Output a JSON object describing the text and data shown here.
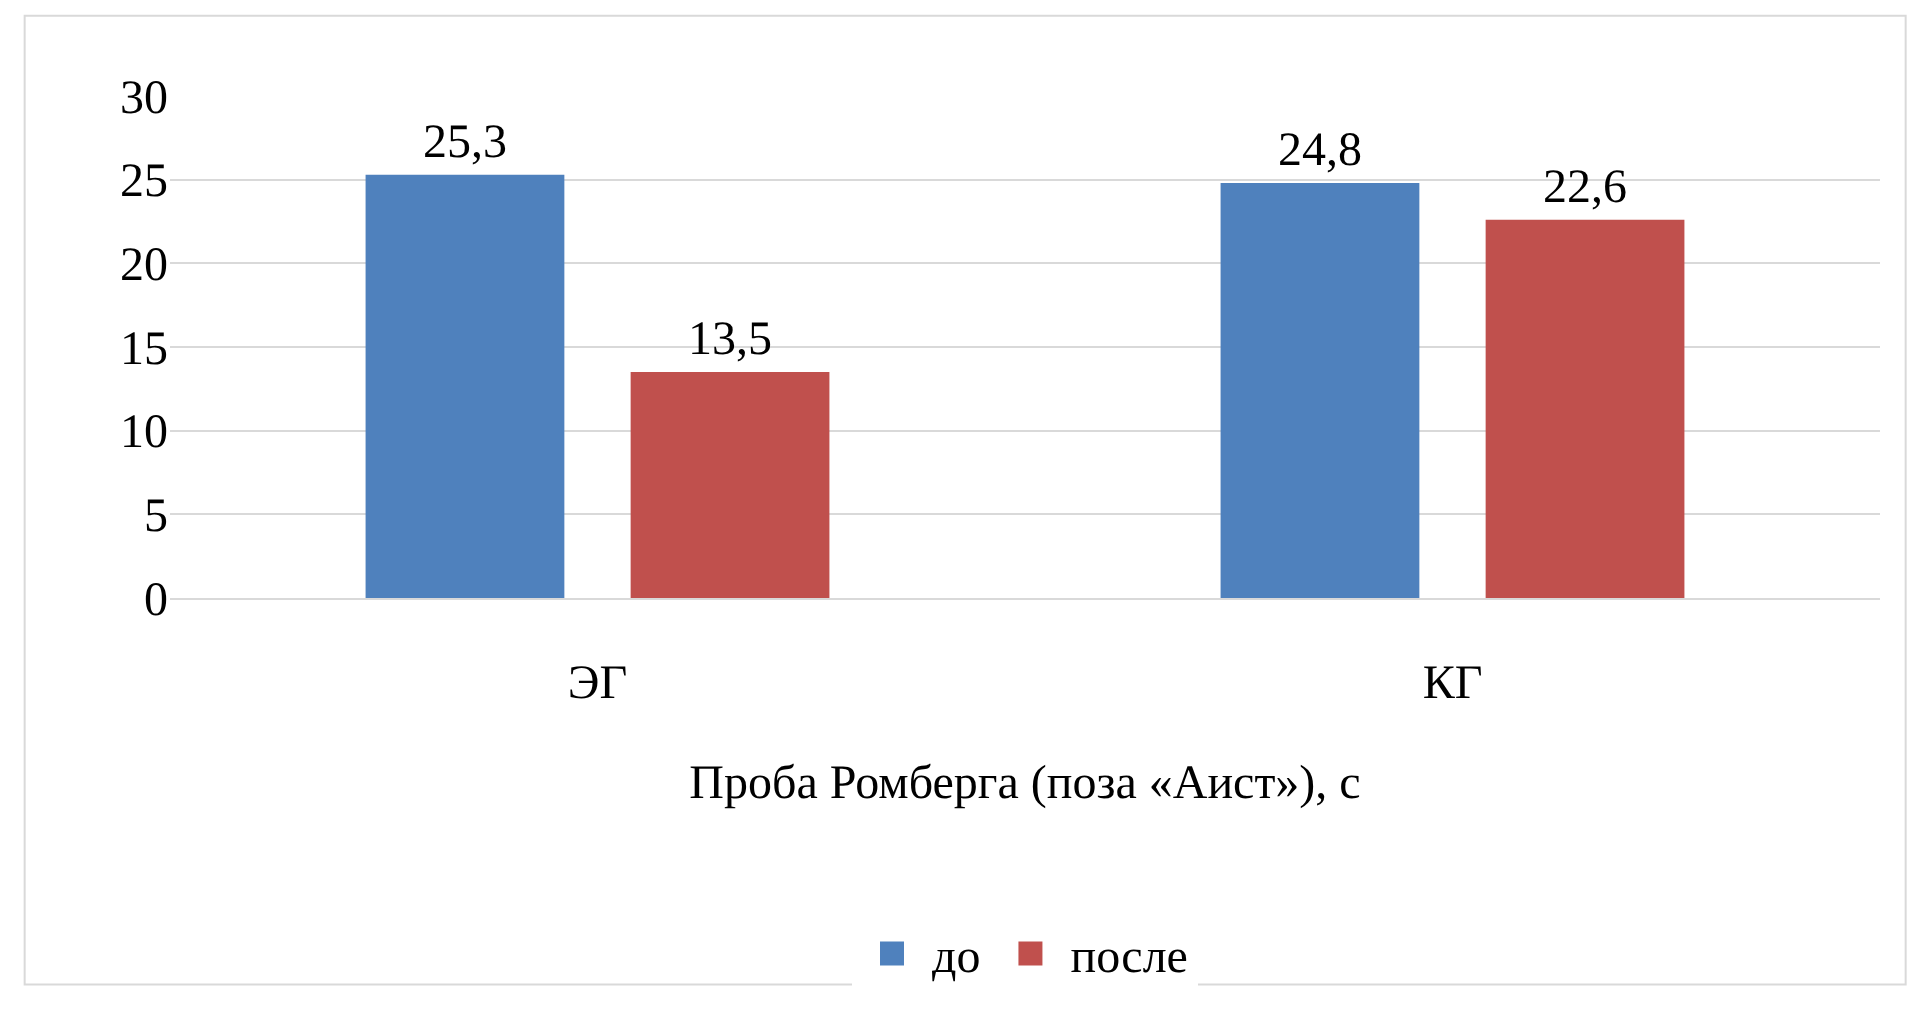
{
  "chart_data": {
    "type": "bar",
    "categories": [
      "ЭГ",
      "КГ"
    ],
    "xlabel": "Проба Ромберга (поза «Аист»), с",
    "series": [
      {
        "name": "до",
        "color": "#4f81bd",
        "values": [
          25.3,
          24.8
        ],
        "value_labels": [
          "25,3",
          "24,8"
        ]
      },
      {
        "name": "после",
        "color": "#c0504d",
        "values": [
          13.5,
          22.6
        ],
        "value_labels": [
          "13,5",
          "22,6"
        ]
      }
    ],
    "ylim": [
      0,
      30
    ],
    "yticks": [
      0,
      5,
      10,
      15,
      20,
      25,
      30
    ],
    "grid": "y",
    "legend": "bottom"
  }
}
